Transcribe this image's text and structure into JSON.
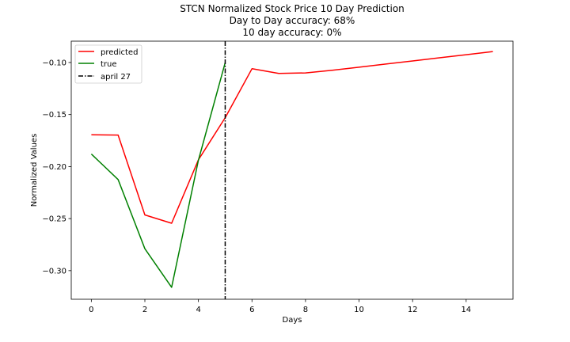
{
  "chart_data": {
    "type": "line",
    "title": [
      "STCN Normalized Stock Price 10 Day Prediction",
      "Day to Day accuracy: 68%",
      "10 day accuracy: 0%"
    ],
    "xlabel": "Days",
    "ylabel": "Normalized Values",
    "xlim": [
      -0.75,
      15.75
    ],
    "ylim": [
      -0.3275,
      -0.0795
    ],
    "x_ticks": [
      0,
      2,
      4,
      6,
      8,
      10,
      12,
      14
    ],
    "y_ticks": [
      -0.3,
      -0.25,
      -0.2,
      -0.15,
      -0.1
    ],
    "y_tick_labels": [
      "−0.30",
      "−0.25",
      "−0.20",
      "−0.15",
      "−0.10"
    ],
    "grid": false,
    "legend_position": "top-left",
    "series": [
      {
        "name": "predicted",
        "color": "#ff0000",
        "x": [
          0,
          1,
          2,
          3,
          4,
          5,
          6,
          7,
          8,
          9,
          10,
          11,
          12,
          13,
          14,
          15
        ],
        "y": [
          -0.1695,
          -0.1697,
          -0.2465,
          -0.2545,
          -0.1935,
          -0.153,
          -0.106,
          -0.1105,
          -0.11,
          -0.1075,
          -0.1045,
          -0.1015,
          -0.0985,
          -0.0955,
          -0.0925,
          -0.0895
        ]
      },
      {
        "name": "true",
        "color": "#008000",
        "x": [
          0,
          1,
          2,
          3,
          4,
          5
        ],
        "y": [
          -0.188,
          -0.2125,
          -0.279,
          -0.316,
          -0.194,
          -0.1
        ]
      }
    ],
    "vlines": [
      {
        "name": "april 27",
        "x": 5,
        "color": "#000000",
        "style": "dashdot"
      }
    ]
  }
}
